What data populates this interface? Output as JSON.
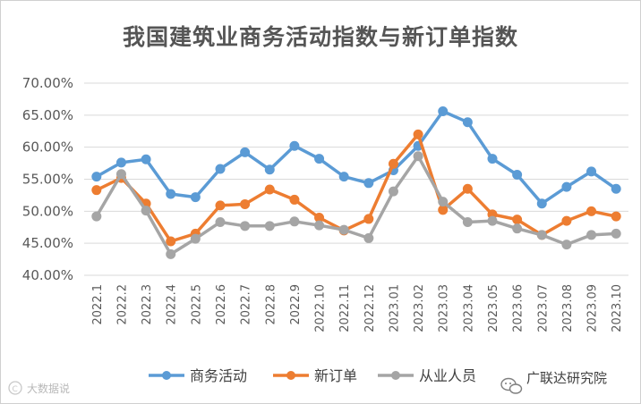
{
  "chart_data": {
    "type": "line",
    "title": "我国建筑业商务活动指数与新订单指数",
    "xlabel": "",
    "ylabel": "",
    "ylim": [
      40,
      70
    ],
    "y_ticks": [
      "40.00%",
      "45.00%",
      "50.00%",
      "55.00%",
      "60.00%",
      "65.00%",
      "70.00%"
    ],
    "grid": true,
    "legend_position": "bottom",
    "categories": [
      "2022.1",
      "2022.2",
      "2022.3",
      "2022.4",
      "2022.5",
      "2022.6",
      "2022.7",
      "2022.8",
      "2022.9",
      "2022.10",
      "2022.11",
      "2022.12",
      "2023.01",
      "2023.02",
      "2023.03",
      "2023.04",
      "2023.05",
      "2023.06",
      "2023.07",
      "2023.08",
      "2023.09",
      "2023.10"
    ],
    "series": [
      {
        "name": "商务活动",
        "color": "#5B9BD5",
        "values": [
          55.4,
          57.6,
          58.1,
          52.7,
          52.2,
          56.6,
          59.2,
          56.5,
          60.2,
          58.2,
          55.4,
          54.4,
          56.4,
          60.2,
          65.6,
          63.9,
          58.2,
          55.7,
          51.2,
          53.8,
          56.2,
          53.5
        ]
      },
      {
        "name": "新订单",
        "color": "#ED7D31",
        "values": [
          53.3,
          55.2,
          51.2,
          45.3,
          46.5,
          50.9,
          51.1,
          53.4,
          51.8,
          49.0,
          47.0,
          48.8,
          57.4,
          62.0,
          50.2,
          53.5,
          49.5,
          48.7,
          46.3,
          48.5,
          50.0,
          49.2
        ]
      },
      {
        "name": "从业人员",
        "color": "#A5A5A5",
        "values": [
          49.2,
          55.8,
          50.1,
          43.3,
          45.7,
          48.3,
          47.7,
          47.7,
          48.4,
          47.8,
          47.1,
          45.8,
          53.1,
          58.6,
          51.5,
          48.3,
          48.5,
          47.3,
          46.3,
          44.8,
          46.3,
          46.5
        ]
      }
    ]
  },
  "watermark": {
    "right": "广联达研究院",
    "left": "大数据说",
    "left_icon": "copyright-icon",
    "right_icon": "wechat-icon"
  }
}
